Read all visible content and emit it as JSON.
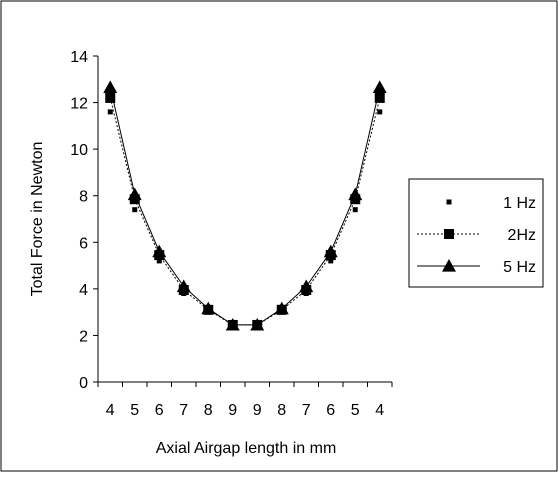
{
  "chart_data": {
    "type": "line",
    "title": "",
    "xlabel": "Axial Airgap length in mm",
    "ylabel": "Total Force in Newton",
    "categories": [
      "4",
      "5",
      "6",
      "7",
      "8",
      "9",
      "9",
      "8",
      "7",
      "6",
      "5",
      "4"
    ],
    "ylim": [
      0,
      14
    ],
    "yticks": [
      0,
      2,
      4,
      6,
      8,
      10,
      12,
      14
    ],
    "grid": false,
    "legend_position": "right",
    "series": [
      {
        "name": "1 Hz",
        "marker": "square-small",
        "line": "none",
        "values": [
          11.6,
          7.4,
          5.2,
          3.8,
          3.0,
          2.4,
          2.4,
          3.0,
          3.8,
          5.2,
          7.4,
          11.6
        ]
      },
      {
        "name": "2Hz",
        "marker": "square",
        "line": "dotted",
        "values": [
          12.2,
          7.85,
          5.45,
          3.95,
          3.1,
          2.45,
          2.45,
          3.1,
          3.95,
          5.45,
          7.85,
          12.2
        ]
      },
      {
        "name": "5 Hz",
        "marker": "triangle",
        "line": "solid",
        "values": [
          12.65,
          8.05,
          5.6,
          4.1,
          3.15,
          2.45,
          2.45,
          3.15,
          4.1,
          5.6,
          8.05,
          12.65
        ]
      }
    ]
  }
}
